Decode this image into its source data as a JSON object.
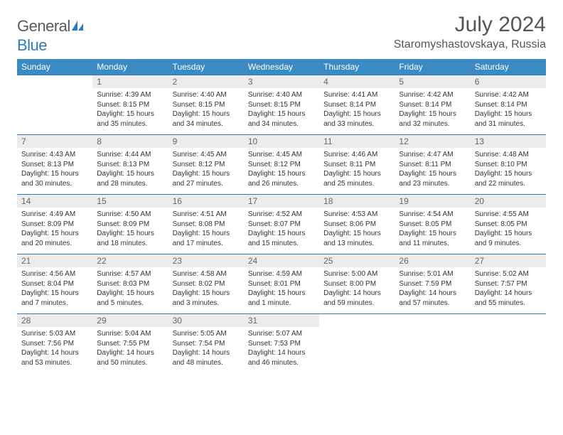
{
  "brand": {
    "name_a": "General",
    "name_b": "Blue"
  },
  "title": {
    "month_year": "July 2024",
    "location": "Staromyshastovskaya, Russia"
  },
  "weekdays": [
    "Sunday",
    "Monday",
    "Tuesday",
    "Wednesday",
    "Thursday",
    "Friday",
    "Saturday"
  ],
  "colors": {
    "header_bg": "#3b8ac4",
    "daynum_bg": "#ececec",
    "rule": "#2a7bbd",
    "text": "#333333",
    "muted": "#666666",
    "brand_blue": "#2a7bbd"
  },
  "weeks": [
    [
      null,
      {
        "n": "1",
        "sr": "Sunrise: 4:39 AM",
        "ss": "Sunset: 8:15 PM",
        "d1": "Daylight: 15 hours",
        "d2": "and 35 minutes."
      },
      {
        "n": "2",
        "sr": "Sunrise: 4:40 AM",
        "ss": "Sunset: 8:15 PM",
        "d1": "Daylight: 15 hours",
        "d2": "and 34 minutes."
      },
      {
        "n": "3",
        "sr": "Sunrise: 4:40 AM",
        "ss": "Sunset: 8:15 PM",
        "d1": "Daylight: 15 hours",
        "d2": "and 34 minutes."
      },
      {
        "n": "4",
        "sr": "Sunrise: 4:41 AM",
        "ss": "Sunset: 8:14 PM",
        "d1": "Daylight: 15 hours",
        "d2": "and 33 minutes."
      },
      {
        "n": "5",
        "sr": "Sunrise: 4:42 AM",
        "ss": "Sunset: 8:14 PM",
        "d1": "Daylight: 15 hours",
        "d2": "and 32 minutes."
      },
      {
        "n": "6",
        "sr": "Sunrise: 4:42 AM",
        "ss": "Sunset: 8:14 PM",
        "d1": "Daylight: 15 hours",
        "d2": "and 31 minutes."
      }
    ],
    [
      {
        "n": "7",
        "sr": "Sunrise: 4:43 AM",
        "ss": "Sunset: 8:13 PM",
        "d1": "Daylight: 15 hours",
        "d2": "and 30 minutes."
      },
      {
        "n": "8",
        "sr": "Sunrise: 4:44 AM",
        "ss": "Sunset: 8:13 PM",
        "d1": "Daylight: 15 hours",
        "d2": "and 28 minutes."
      },
      {
        "n": "9",
        "sr": "Sunrise: 4:45 AM",
        "ss": "Sunset: 8:12 PM",
        "d1": "Daylight: 15 hours",
        "d2": "and 27 minutes."
      },
      {
        "n": "10",
        "sr": "Sunrise: 4:45 AM",
        "ss": "Sunset: 8:12 PM",
        "d1": "Daylight: 15 hours",
        "d2": "and 26 minutes."
      },
      {
        "n": "11",
        "sr": "Sunrise: 4:46 AM",
        "ss": "Sunset: 8:11 PM",
        "d1": "Daylight: 15 hours",
        "d2": "and 25 minutes."
      },
      {
        "n": "12",
        "sr": "Sunrise: 4:47 AM",
        "ss": "Sunset: 8:11 PM",
        "d1": "Daylight: 15 hours",
        "d2": "and 23 minutes."
      },
      {
        "n": "13",
        "sr": "Sunrise: 4:48 AM",
        "ss": "Sunset: 8:10 PM",
        "d1": "Daylight: 15 hours",
        "d2": "and 22 minutes."
      }
    ],
    [
      {
        "n": "14",
        "sr": "Sunrise: 4:49 AM",
        "ss": "Sunset: 8:09 PM",
        "d1": "Daylight: 15 hours",
        "d2": "and 20 minutes."
      },
      {
        "n": "15",
        "sr": "Sunrise: 4:50 AM",
        "ss": "Sunset: 8:09 PM",
        "d1": "Daylight: 15 hours",
        "d2": "and 18 minutes."
      },
      {
        "n": "16",
        "sr": "Sunrise: 4:51 AM",
        "ss": "Sunset: 8:08 PM",
        "d1": "Daylight: 15 hours",
        "d2": "and 17 minutes."
      },
      {
        "n": "17",
        "sr": "Sunrise: 4:52 AM",
        "ss": "Sunset: 8:07 PM",
        "d1": "Daylight: 15 hours",
        "d2": "and 15 minutes."
      },
      {
        "n": "18",
        "sr": "Sunrise: 4:53 AM",
        "ss": "Sunset: 8:06 PM",
        "d1": "Daylight: 15 hours",
        "d2": "and 13 minutes."
      },
      {
        "n": "19",
        "sr": "Sunrise: 4:54 AM",
        "ss": "Sunset: 8:05 PM",
        "d1": "Daylight: 15 hours",
        "d2": "and 11 minutes."
      },
      {
        "n": "20",
        "sr": "Sunrise: 4:55 AM",
        "ss": "Sunset: 8:05 PM",
        "d1": "Daylight: 15 hours",
        "d2": "and 9 minutes."
      }
    ],
    [
      {
        "n": "21",
        "sr": "Sunrise: 4:56 AM",
        "ss": "Sunset: 8:04 PM",
        "d1": "Daylight: 15 hours",
        "d2": "and 7 minutes."
      },
      {
        "n": "22",
        "sr": "Sunrise: 4:57 AM",
        "ss": "Sunset: 8:03 PM",
        "d1": "Daylight: 15 hours",
        "d2": "and 5 minutes."
      },
      {
        "n": "23",
        "sr": "Sunrise: 4:58 AM",
        "ss": "Sunset: 8:02 PM",
        "d1": "Daylight: 15 hours",
        "d2": "and 3 minutes."
      },
      {
        "n": "24",
        "sr": "Sunrise: 4:59 AM",
        "ss": "Sunset: 8:01 PM",
        "d1": "Daylight: 15 hours",
        "d2": "and 1 minute."
      },
      {
        "n": "25",
        "sr": "Sunrise: 5:00 AM",
        "ss": "Sunset: 8:00 PM",
        "d1": "Daylight: 14 hours",
        "d2": "and 59 minutes."
      },
      {
        "n": "26",
        "sr": "Sunrise: 5:01 AM",
        "ss": "Sunset: 7:59 PM",
        "d1": "Daylight: 14 hours",
        "d2": "and 57 minutes."
      },
      {
        "n": "27",
        "sr": "Sunrise: 5:02 AM",
        "ss": "Sunset: 7:57 PM",
        "d1": "Daylight: 14 hours",
        "d2": "and 55 minutes."
      }
    ],
    [
      {
        "n": "28",
        "sr": "Sunrise: 5:03 AM",
        "ss": "Sunset: 7:56 PM",
        "d1": "Daylight: 14 hours",
        "d2": "and 53 minutes."
      },
      {
        "n": "29",
        "sr": "Sunrise: 5:04 AM",
        "ss": "Sunset: 7:55 PM",
        "d1": "Daylight: 14 hours",
        "d2": "and 50 minutes."
      },
      {
        "n": "30",
        "sr": "Sunrise: 5:05 AM",
        "ss": "Sunset: 7:54 PM",
        "d1": "Daylight: 14 hours",
        "d2": "and 48 minutes."
      },
      {
        "n": "31",
        "sr": "Sunrise: 5:07 AM",
        "ss": "Sunset: 7:53 PM",
        "d1": "Daylight: 14 hours",
        "d2": "and 46 minutes."
      },
      null,
      null,
      null
    ]
  ]
}
